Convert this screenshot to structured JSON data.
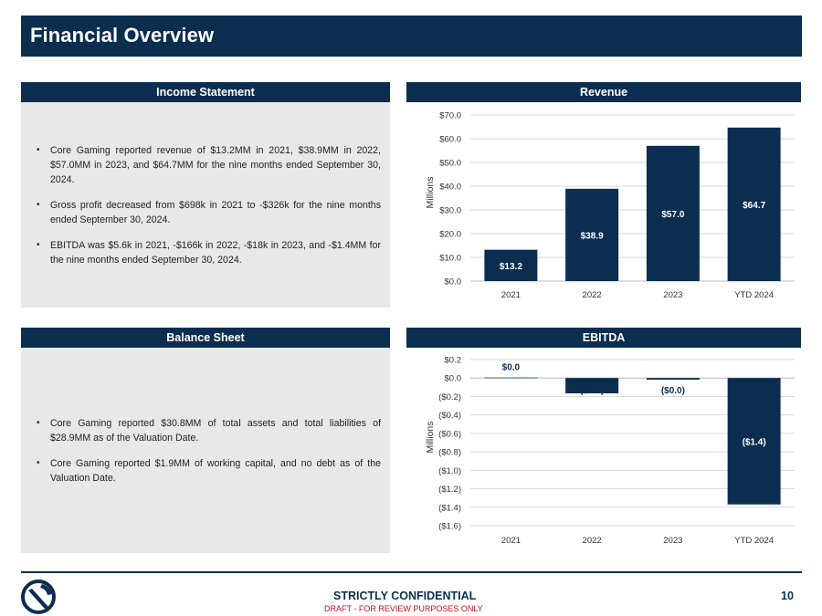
{
  "page": {
    "title": "Financial Overview",
    "confidential": "STRICTLY CONFIDENTIAL",
    "draft": "DRAFT - FOR REVIEW PURPOSES ONLY",
    "page_number": "10"
  },
  "income_statement": {
    "header": "Income Statement",
    "bullets": [
      "Core Gaming reported revenue of $13.2MM in 2021, $38.9MM in 2022, $57.0MM in 2023, and $64.7MM for the nine months ended September 30, 2024.",
      "Gross profit decreased from $698k in 2021 to -$326k for the nine months ended September 30, 2024.",
      "EBITDA was $5.6k in 2021, -$166k in 2022, -$18k in 2023,  and -$1.4MM for the nine months ended September 30, 2024."
    ]
  },
  "balance_sheet": {
    "header": "Balance Sheet",
    "bullets": [
      "Core Gaming reported $30.8MM of total assets and total liabilities of $28.9MM as of the Valuation Date.",
      "Core Gaming reported $1.9MM of working capital, and no debt as of the Valuation Date."
    ]
  },
  "colors": {
    "navy": "#0b2d4f",
    "panel_gray": "#e8e8e8",
    "draft_red": "#c0111f",
    "grid": "#d9d9d9"
  },
  "icons": {
    "logo": "company-logo-icon"
  },
  "chart_data": [
    {
      "type": "bar",
      "title": "Revenue",
      "categories": [
        "2021",
        "2022",
        "2023",
        "YTD 2024"
      ],
      "values": [
        13.2,
        38.9,
        57.0,
        64.7
      ],
      "data_labels": [
        "$13.2",
        "$38.9",
        "$57.0",
        "$64.7"
      ],
      "ylabel": "Millions",
      "ylim": [
        0,
        70
      ],
      "ytick_values": [
        0,
        10,
        20,
        30,
        40,
        50,
        60,
        70
      ],
      "ytick_labels": [
        "$0.0",
        "$10.0",
        "$20.0",
        "$30.0",
        "$40.0",
        "$50.0",
        "$60.0",
        "$70.0"
      ],
      "grid": true,
      "legend": "none"
    },
    {
      "type": "bar",
      "title": "EBITDA",
      "categories": [
        "2021",
        "2022",
        "2023",
        "YTD 2024"
      ],
      "values": [
        0.0056,
        -0.166,
        -0.018,
        -1.37
      ],
      "data_labels": [
        "$0.0",
        "($0.2)",
        "($0.0)",
        "($1.4)"
      ],
      "ylabel": "Millions",
      "ylim": [
        -1.6,
        0.2
      ],
      "ytick_values": [
        0.2,
        0,
        -0.2,
        -0.4,
        -0.6,
        -0.8,
        -1.0,
        -1.2,
        -1.4,
        -1.6
      ],
      "ytick_labels": [
        "$0.2",
        "$0.0",
        "($0.2)",
        "($0.4)",
        "($0.6)",
        "($0.8)",
        "($1.0)",
        "($1.2)",
        "($1.4)",
        "($1.6)"
      ],
      "grid": true,
      "legend": "none"
    }
  ]
}
